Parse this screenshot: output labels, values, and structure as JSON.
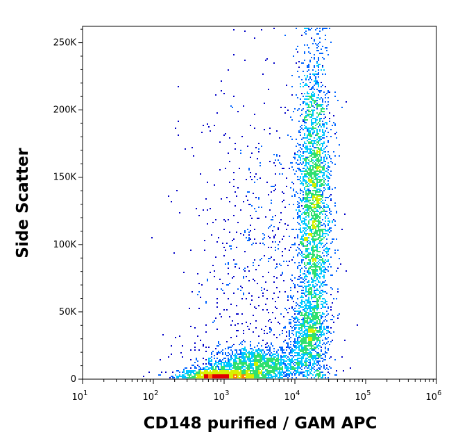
{
  "chart_data": {
    "type": "scatter",
    "style": "flow-cytometry density dot plot",
    "xlabel": "CD148 purified / GAM APC",
    "ylabel": "Side Scatter",
    "x_scale": "log",
    "xlim": [
      10,
      1000000
    ],
    "ylim": [
      0,
      262144
    ],
    "x_ticks": [
      {
        "value": 10,
        "base": "10",
        "exp": "1"
      },
      {
        "value": 100,
        "base": "10",
        "exp": "2"
      },
      {
        "value": 1000,
        "base": "10",
        "exp": "3"
      },
      {
        "value": 10000,
        "base": "10",
        "exp": "4"
      },
      {
        "value": 100000,
        "base": "10",
        "exp": "5"
      },
      {
        "value": 1000000,
        "base": "10",
        "exp": "6"
      }
    ],
    "y_ticks": [
      {
        "value": 0,
        "label": "0"
      },
      {
        "value": 50000,
        "label": "50K"
      },
      {
        "value": 100000,
        "label": "100K"
      },
      {
        "value": 150000,
        "label": "150K"
      },
      {
        "value": 200000,
        "label": "200K"
      },
      {
        "value": 250000,
        "label": "250K"
      }
    ],
    "grid": false,
    "legend": "none",
    "density_colors": [
      "#0000c8",
      "#0064ff",
      "#00c8ff",
      "#30e070",
      "#d8f000",
      "#ff8000",
      "#e00000"
    ],
    "populations": [
      {
        "x_center": 800,
        "y_center": 2500,
        "x_spread_decades": 0.28,
        "y_spread": 3000,
        "weight": 0.14
      },
      {
        "x_center": 2700,
        "y_center": 11000,
        "x_spread_decades": 0.35,
        "y_spread": 7000,
        "weight": 0.16
      },
      {
        "x_center": 18000,
        "y_center": 130000,
        "x_spread_decades": 0.12,
        "y_spread": 60000,
        "weight": 0.52
      },
      {
        "x_center": 15000,
        "y_center": 35000,
        "x_spread_decades": 0.14,
        "y_spread": 15000,
        "weight": 0.1
      },
      {
        "x_center": 3000,
        "y_center": 80000,
        "x_spread_decades": 0.5,
        "y_spread": 70000,
        "weight": 0.08
      }
    ]
  }
}
